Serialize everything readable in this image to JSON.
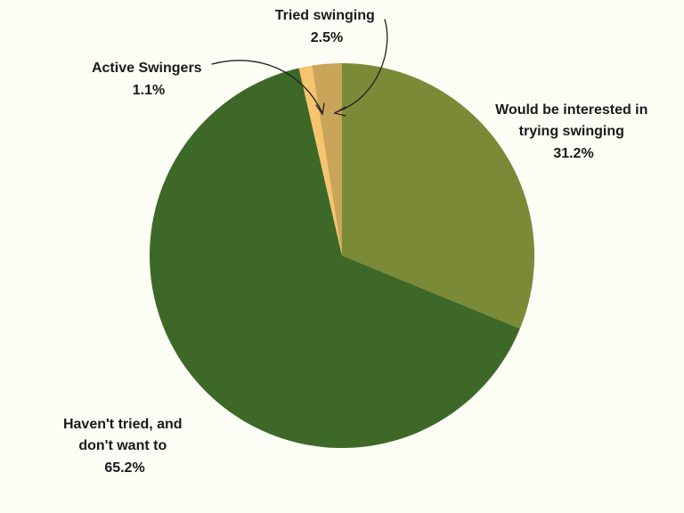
{
  "chart_data": {
    "type": "pie",
    "title": "",
    "slices": [
      {
        "label": "Would be interested in trying swinging",
        "label_lines": [
          "Would be interested in",
          "trying swinging"
        ],
        "value": 31.2,
        "display": "31.2%",
        "color": "#7a8a37"
      },
      {
        "label": "Haven't tried, and don't want to",
        "label_lines": [
          "Haven't tried, and",
          "don't want to"
        ],
        "value": 65.2,
        "display": "65.2%",
        "color": "#3e6828"
      },
      {
        "label": "Active Swingers",
        "label_lines": [
          "Active Swingers"
        ],
        "value": 1.1,
        "display": "1.1%",
        "color": "#f6c46c"
      },
      {
        "label": "Tried swinging",
        "label_lines": [
          "Tried swinging"
        ],
        "value": 2.5,
        "display": "2.5%",
        "color": "#c9a55a"
      }
    ],
    "start_angle": "12 o'clock",
    "direction": "clockwise",
    "legend": "none",
    "label_style": "outside labels with percentages; hand-drawn arrows for small slices"
  },
  "colors": {
    "background": "#fcfdf5"
  }
}
